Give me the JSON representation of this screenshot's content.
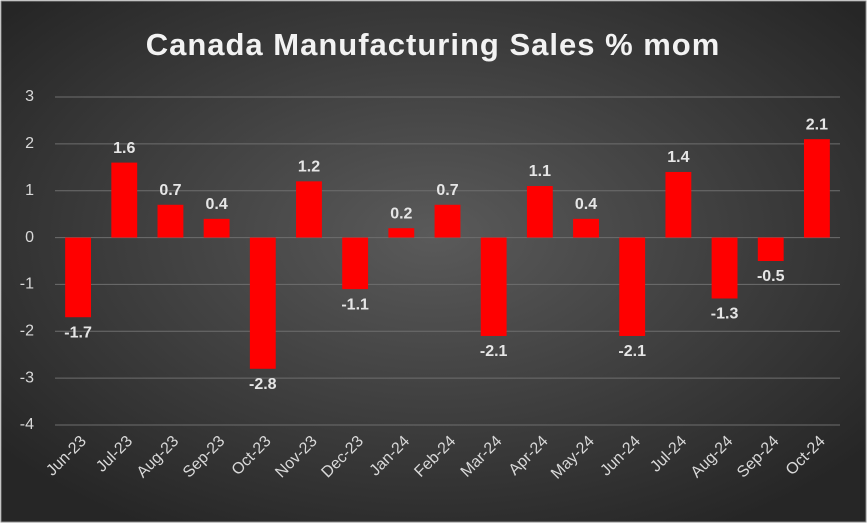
{
  "chart_data": {
    "type": "bar",
    "title": "Canada Manufacturing Sales % mom",
    "categories": [
      "Jun-23",
      "Jul-23",
      "Aug-23",
      "Sep-23",
      "Oct-23",
      "Nov-23",
      "Dec-23",
      "Jan-24",
      "Feb-24",
      "Mar-24",
      "Apr-24",
      "May-24",
      "Jun-24",
      "Jul-24",
      "Aug-24",
      "Sep-24",
      "Oct-24"
    ],
    "values": [
      -1.7,
      1.6,
      0.7,
      0.4,
      -2.8,
      1.2,
      -1.1,
      0.2,
      0.7,
      -2.1,
      1.1,
      0.4,
      -2.1,
      1.4,
      -1.3,
      -0.5,
      2.1
    ],
    "color": "#ff0000",
    "ylim": [
      -4,
      3
    ],
    "yticks": [
      -4,
      -3,
      -2,
      -1,
      0,
      1,
      2,
      3
    ],
    "grid": true
  }
}
